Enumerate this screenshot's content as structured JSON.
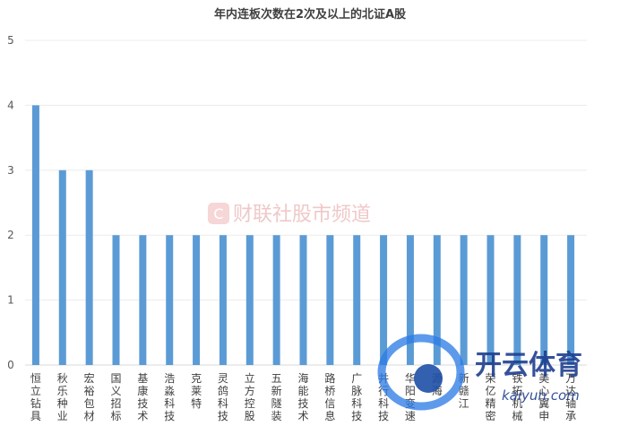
{
  "chart_data": {
    "type": "bar",
    "title": "年内连板次数在2次及以上的北证A股",
    "categories": [
      "恒立钻具",
      "秋乐种业",
      "宏裕包材",
      "国义招标",
      "基康技术",
      "浩淼科技",
      "克莱特",
      "灵鸽科技",
      "立方控股",
      "五新隧装",
      "海能技术",
      "路桥信息",
      "广脉科技",
      "并行科技",
      "华阳变速",
      "源海",
      "新赣江",
      "荣亿精密",
      "铁拓机械",
      "美心翼申",
      "万达轴承"
    ],
    "values": [
      4,
      3,
      3,
      2,
      2,
      2,
      2,
      2,
      2,
      2,
      2,
      2,
      2,
      2,
      2,
      2,
      2,
      2,
      2,
      2,
      2
    ],
    "ylim": [
      0,
      5
    ],
    "yticks": [
      0,
      1,
      2,
      3,
      4,
      5
    ],
    "color": "#5b9bd5",
    "grid": true,
    "legend": "none"
  },
  "watermarks": {
    "center_text": "财联社股市频道",
    "logo_text": "开云体育",
    "logo_url": "kaiyun.com"
  }
}
